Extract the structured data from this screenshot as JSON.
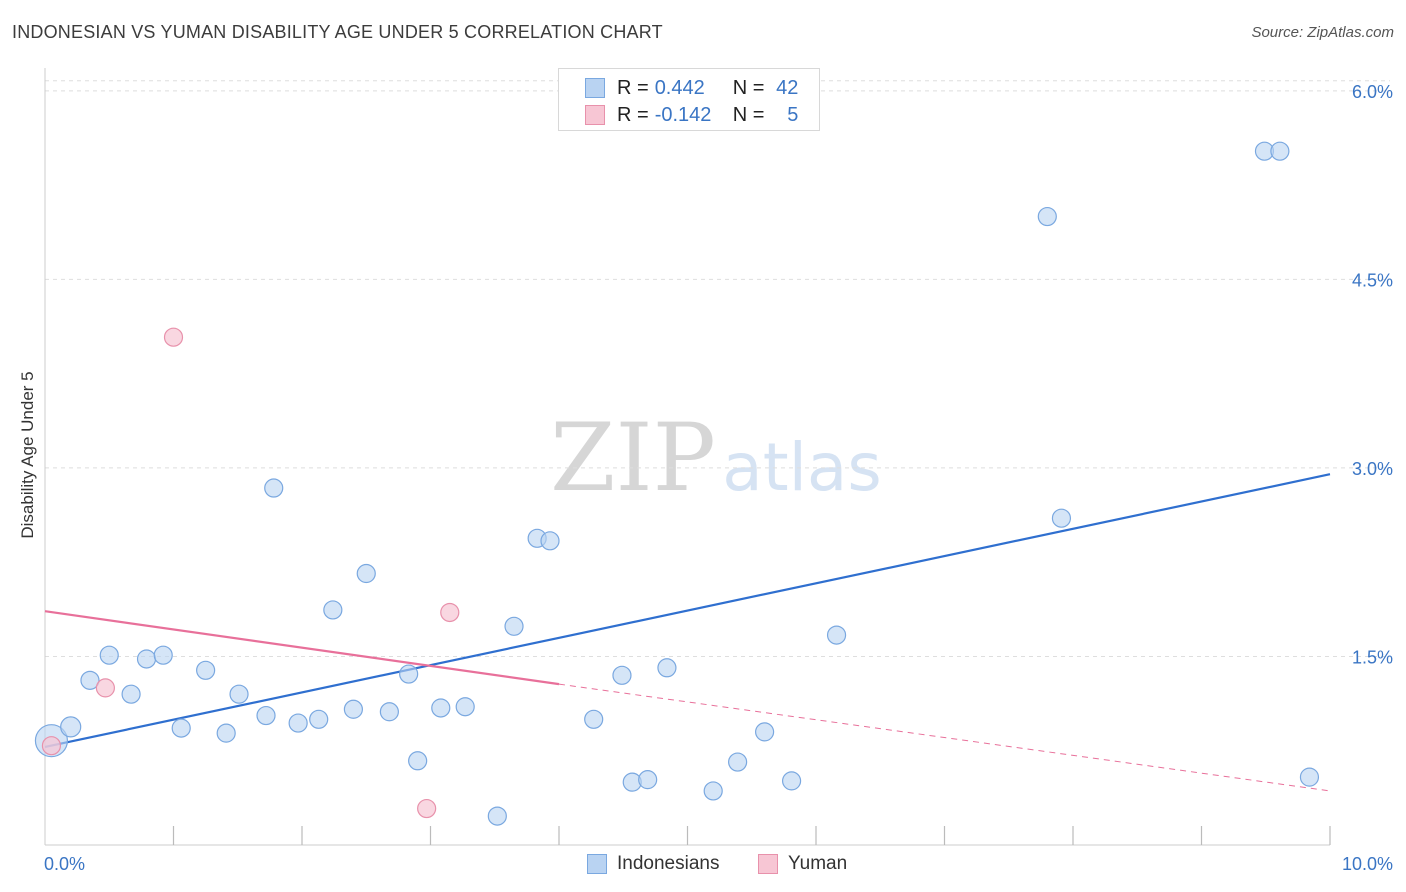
{
  "header": {
    "title": "INDONESIAN VS YUMAN DISABILITY AGE UNDER 5 CORRELATION CHART",
    "source": "Source: ZipAtlas.com"
  },
  "watermark": {
    "zip": "ZIP",
    "atlas": "atlas"
  },
  "legend": {
    "rows": [
      {
        "r_label": "R =",
        "r_value": "0.442",
        "n_label": "N =",
        "n_value": "42"
      },
      {
        "r_label": "R =",
        "r_value": "-0.142",
        "n_label": "N =",
        "n_value": "5"
      }
    ]
  },
  "bottom_legend": {
    "indonesians": "Indonesians",
    "yuman": "Yuman"
  },
  "colors": {
    "blue_fill": "#b9d3f2",
    "blue_stroke": "#7aa8e0",
    "blue_line": "#2f6fcf",
    "pink_fill": "#f7c6d4",
    "pink_stroke": "#e891ab",
    "pink_line": "#e8709a",
    "tick_text": "#3a75c4",
    "grid": "#dedede"
  },
  "chart_data": {
    "type": "scatter",
    "title": "INDONESIAN VS YUMAN DISABILITY AGE UNDER 5 CORRELATION CHART",
    "xlabel": "",
    "ylabel": "Disability Age Under 5",
    "xlim": [
      0,
      10
    ],
    "ylim": [
      0,
      6.15
    ],
    "x_tick_labels": [
      "0.0%",
      "10.0%"
    ],
    "y_ticks": [
      1.5,
      3.0,
      4.5,
      6.0
    ],
    "y_tick_labels": [
      "1.5%",
      "3.0%",
      "4.5%",
      "6.0%"
    ],
    "x_minor_ticks": [
      1,
      2,
      3,
      4,
      5,
      6,
      7,
      8,
      9,
      10
    ],
    "grid": true,
    "series": [
      {
        "name": "Indonesians",
        "r": 0.442,
        "n": 42,
        "points": [
          [
            0.05,
            0.83,
            16
          ],
          [
            0.2,
            0.94,
            10
          ],
          [
            0.35,
            1.31,
            9
          ],
          [
            0.5,
            1.51,
            9
          ],
          [
            0.67,
            1.2,
            9
          ],
          [
            0.79,
            1.48,
            9
          ],
          [
            0.92,
            1.51,
            9
          ],
          [
            1.06,
            0.93,
            9
          ],
          [
            1.25,
            1.39,
            9
          ],
          [
            1.41,
            0.89,
            9
          ],
          [
            1.51,
            1.2,
            9
          ],
          [
            1.72,
            1.03,
            9
          ],
          [
            1.78,
            2.84,
            9
          ],
          [
            1.97,
            0.97,
            9
          ],
          [
            2.13,
            1.0,
            9
          ],
          [
            2.24,
            1.87,
            9
          ],
          [
            2.4,
            1.08,
            9
          ],
          [
            2.5,
            2.16,
            9
          ],
          [
            2.68,
            1.06,
            9
          ],
          [
            2.83,
            1.36,
            9
          ],
          [
            2.9,
            0.67,
            9
          ],
          [
            3.08,
            1.09,
            9
          ],
          [
            3.27,
            1.1,
            9
          ],
          [
            3.52,
            0.23,
            9
          ],
          [
            3.65,
            1.74,
            9
          ],
          [
            3.83,
            2.44,
            9
          ],
          [
            3.93,
            2.42,
            9
          ],
          [
            4.27,
            1.0,
            9
          ],
          [
            4.49,
            1.35,
            9
          ],
          [
            4.57,
            0.5,
            9
          ],
          [
            4.69,
            0.52,
            9
          ],
          [
            4.84,
            1.41,
            9
          ],
          [
            5.2,
            0.43,
            9
          ],
          [
            5.39,
            0.66,
            9
          ],
          [
            5.6,
            0.9,
            9
          ],
          [
            5.81,
            0.51,
            9
          ],
          [
            6.16,
            1.67,
            9
          ],
          [
            7.8,
            5.0,
            9
          ],
          [
            7.91,
            2.6,
            9
          ],
          [
            9.49,
            5.52,
            9
          ],
          [
            9.61,
            5.52,
            9
          ],
          [
            9.84,
            0.54,
            9
          ]
        ],
        "trend": {
          "x0": 0.0,
          "y0": 0.78,
          "x1": 10.0,
          "y1": 2.95
        }
      },
      {
        "name": "Yuman",
        "r": -0.142,
        "n": 5,
        "points": [
          [
            0.05,
            0.79,
            9
          ],
          [
            0.47,
            1.25,
            9
          ],
          [
            1.0,
            4.04,
            9
          ],
          [
            2.97,
            0.29,
            9
          ],
          [
            3.15,
            1.85,
            9
          ]
        ],
        "trend": {
          "x0": 0.0,
          "y0": 1.86,
          "x1": 4.0,
          "y1": 1.28,
          "dashed_to_x": 10.0,
          "dashed_to_y": 0.43
        }
      }
    ]
  }
}
